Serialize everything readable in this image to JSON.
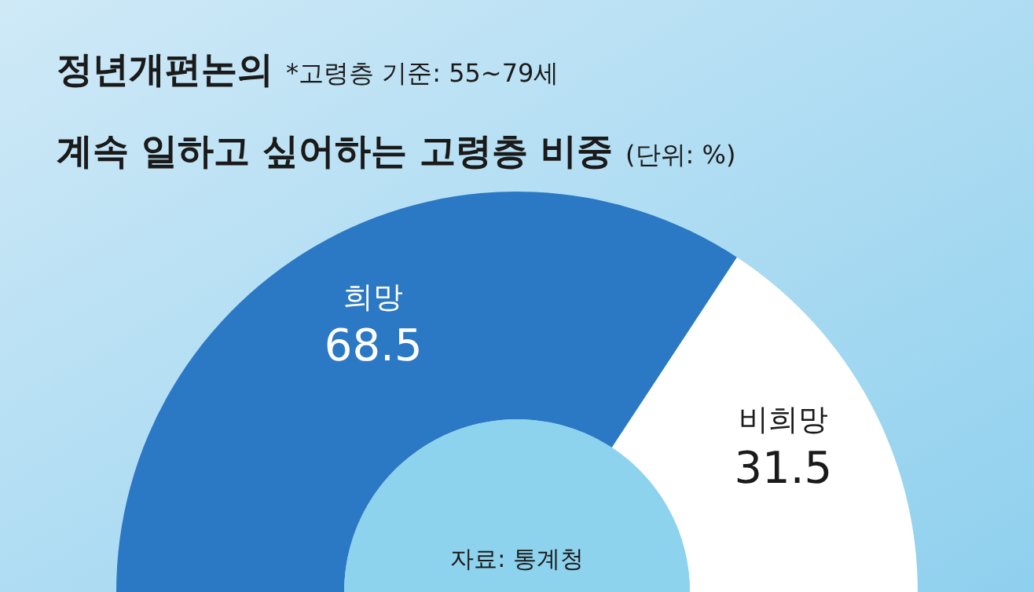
{
  "chart_data": {
    "type": "donut",
    "title": "정년개편논의",
    "subtitle": "계속 일하고 싶어하는 고령층 비중",
    "annotations": [
      "*고령층 기준: 55~79세",
      "(단위: %)",
      "자료: 통계청"
    ],
    "categories": [
      "희망",
      "비희망"
    ],
    "values": [
      68.5,
      31.5
    ],
    "colors": [
      "#2b78c4",
      "#ffffff"
    ],
    "data_labels": true
  }
}
